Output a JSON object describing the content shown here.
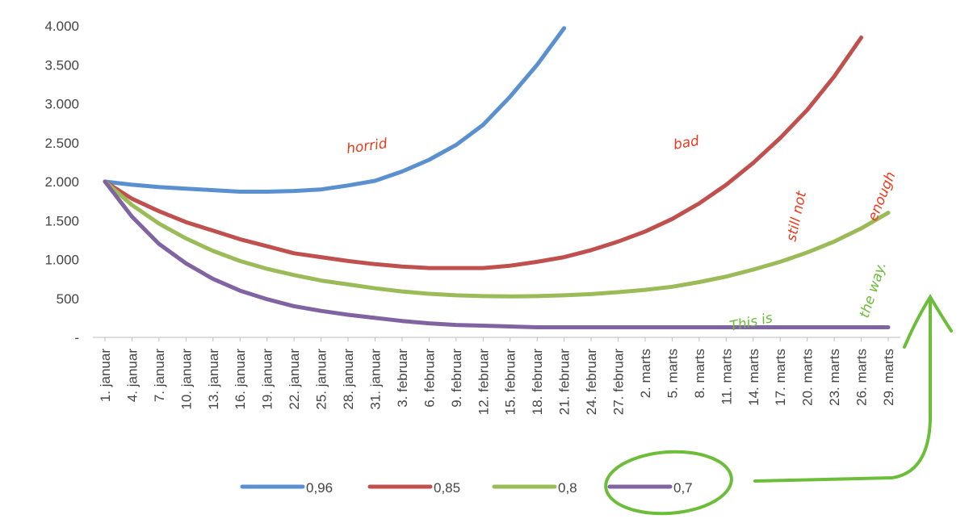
{
  "chart_data": {
    "type": "line",
    "categories": [
      "1. januar",
      "4. januar",
      "7. januar",
      "10. januar",
      "13. januar",
      "16. januar",
      "19. januar",
      "22. januar",
      "25. januar",
      "28. januar",
      "31. januar",
      "3. februar",
      "6. februar",
      "9. februar",
      "12. februar",
      "15. februar",
      "18. februar",
      "21. februar",
      "24. februar",
      "27. februar",
      "2. marts",
      "5. marts",
      "8. marts",
      "11. marts",
      "14. marts",
      "17. marts",
      "20. marts",
      "23. marts",
      "26. marts",
      "29. marts"
    ],
    "series": [
      {
        "name": "0,96",
        "color": "#5a8fd0",
        "values": [
          2000,
          1960,
          1930,
          1910,
          1890,
          1870,
          1870,
          1880,
          1900,
          1950,
          2010,
          2130,
          2280,
          2470,
          2730,
          3090,
          3500,
          3970,
          null,
          null,
          null,
          null,
          null,
          null,
          null,
          null,
          null,
          null,
          null,
          null
        ]
      },
      {
        "name": "0,85",
        "color": "#c0504d",
        "values": [
          2000,
          1780,
          1620,
          1480,
          1370,
          1260,
          1170,
          1080,
          1030,
          980,
          940,
          910,
          890,
          890,
          890,
          920,
          970,
          1030,
          1120,
          1230,
          1360,
          1520,
          1720,
          1960,
          2240,
          2560,
          2920,
          3350,
          3850,
          null
        ]
      },
      {
        "name": "0,8",
        "color": "#9bbb59",
        "values": [
          2000,
          1700,
          1460,
          1270,
          1110,
          980,
          880,
          800,
          730,
          680,
          630,
          590,
          560,
          540,
          530,
          525,
          530,
          540,
          555,
          580,
          610,
          650,
          710,
          780,
          870,
          970,
          1090,
          1230,
          1400,
          1600
        ]
      },
      {
        "name": "0,7",
        "color": "#8064a2",
        "values": [
          2000,
          1550,
          1200,
          950,
          750,
          600,
          490,
          400,
          340,
          290,
          250,
          210,
          180,
          160,
          150,
          140,
          130,
          130,
          130,
          130,
          130,
          130,
          130,
          130,
          130,
          130,
          130,
          130,
          130,
          130
        ]
      }
    ],
    "ylim": [
      0,
      4000
    ],
    "yticks": [
      {
        "value": 0,
        "label": "-"
      },
      {
        "value": 500,
        "label": "500"
      },
      {
        "value": 1000,
        "label": "1.000"
      },
      {
        "value": 1500,
        "label": "1.500"
      },
      {
        "value": 2000,
        "label": "2.000"
      },
      {
        "value": 2500,
        "label": "2.500"
      },
      {
        "value": 3000,
        "label": "3.000"
      },
      {
        "value": 3500,
        "label": "3.500"
      },
      {
        "value": 4000,
        "label": "4.000"
      }
    ],
    "grid": false,
    "legend": "bottom",
    "annotations": [
      "horrid",
      "bad",
      "still not",
      "enough",
      "This is",
      "the way."
    ]
  }
}
